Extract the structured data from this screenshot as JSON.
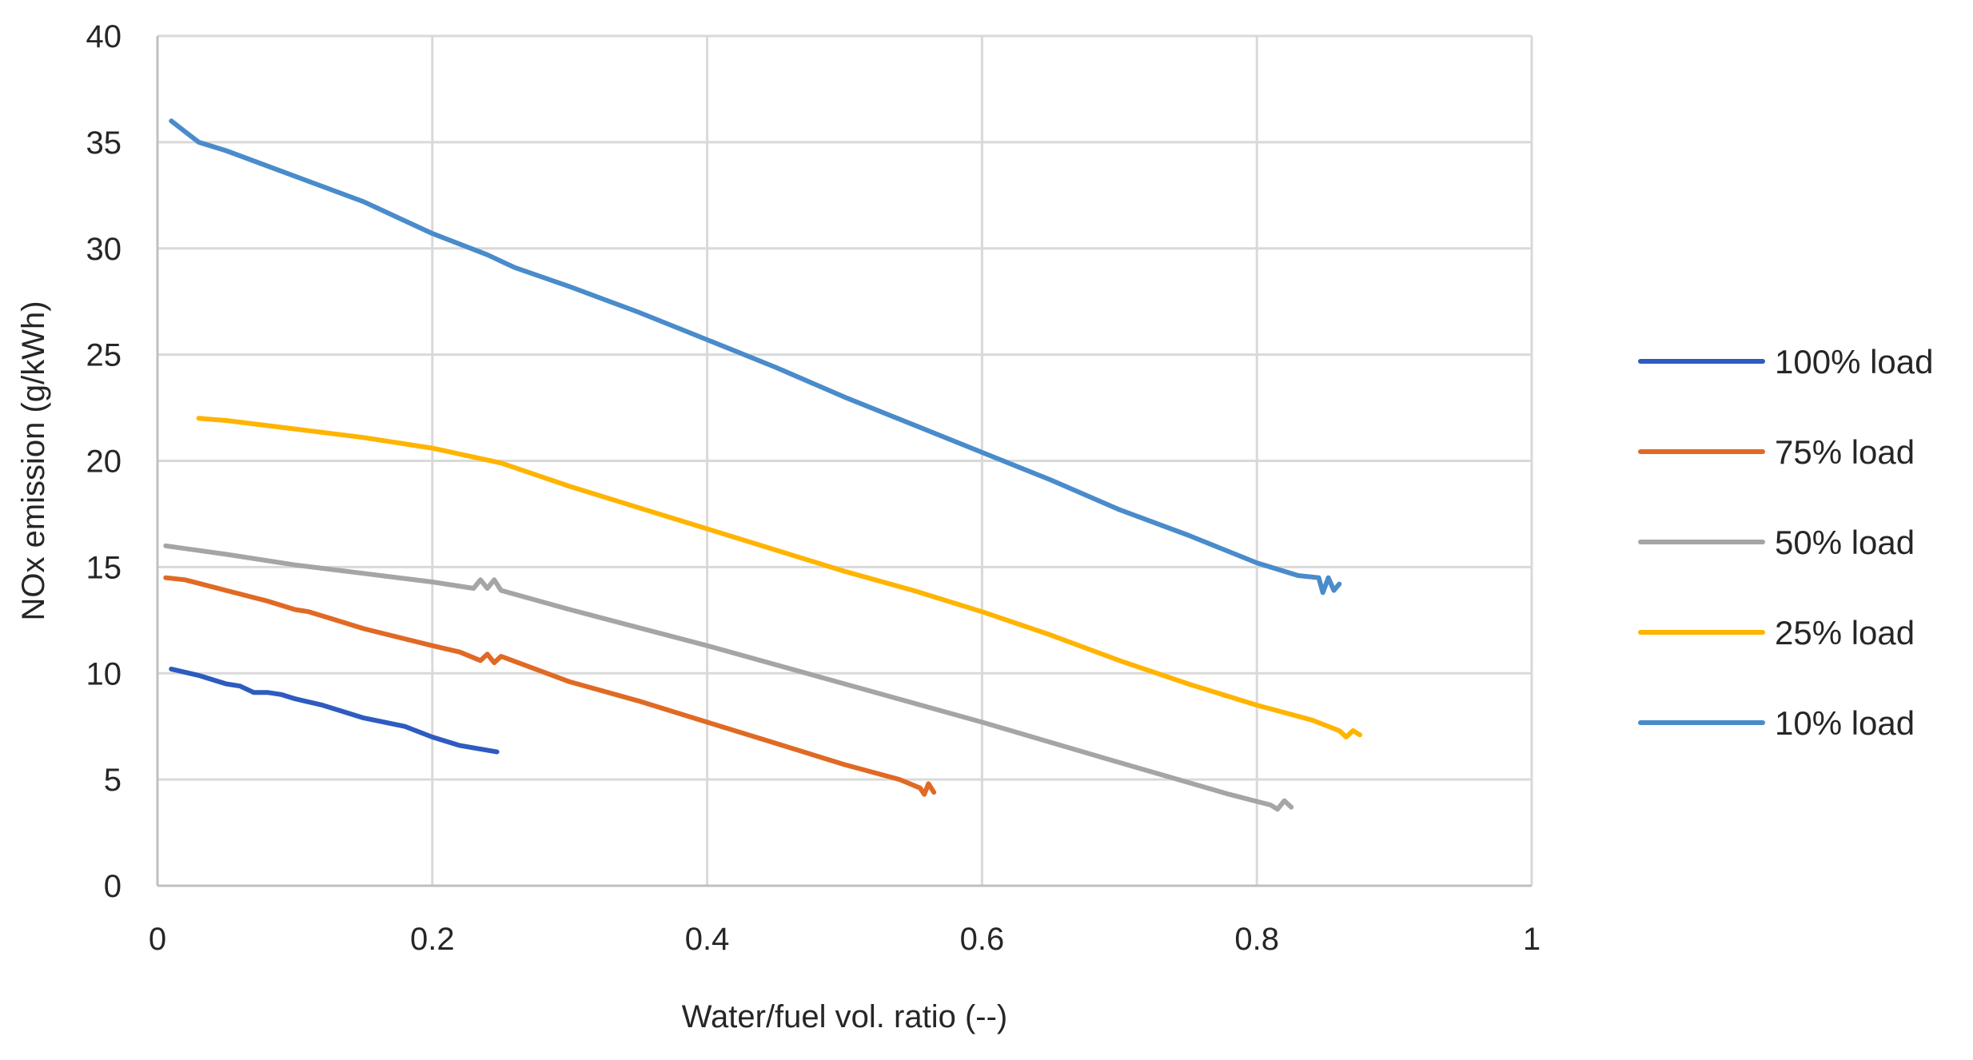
{
  "chart_data": {
    "type": "line",
    "title": "",
    "xlabel": "Water/fuel vol. ratio (--)",
    "ylabel": "NOx emission (g/kWh)",
    "xlim": [
      0,
      1
    ],
    "ylim": [
      0,
      40
    ],
    "x_ticks": [
      0,
      0.2,
      0.4,
      0.6,
      0.8,
      1
    ],
    "x_tick_labels": [
      "0",
      "0.2",
      "0.4",
      "0.6",
      "0.8",
      "1"
    ],
    "y_ticks": [
      0,
      5,
      10,
      15,
      20,
      25,
      30,
      35,
      40
    ],
    "y_tick_labels": [
      "0",
      "5",
      "10",
      "15",
      "20",
      "25",
      "30",
      "35",
      "40"
    ],
    "grid": true,
    "legend_position": "right",
    "series": [
      {
        "name": "100% load",
        "color": "#2E5BBF",
        "x": [
          0.01,
          0.03,
          0.05,
          0.06,
          0.07,
          0.08,
          0.09,
          0.1,
          0.12,
          0.15,
          0.18,
          0.2,
          0.22,
          0.247
        ],
        "y": [
          10.2,
          9.9,
          9.5,
          9.4,
          9.1,
          9.1,
          9.0,
          8.8,
          8.5,
          7.9,
          7.5,
          7.0,
          6.6,
          6.3
        ]
      },
      {
        "name": "75% load",
        "color": "#E06A24",
        "x": [
          0.006,
          0.02,
          0.05,
          0.08,
          0.1,
          0.11,
          0.13,
          0.15,
          0.2,
          0.22,
          0.235,
          0.24,
          0.245,
          0.25,
          0.3,
          0.35,
          0.4,
          0.45,
          0.5,
          0.54,
          0.555,
          0.558,
          0.561,
          0.565
        ],
        "y": [
          14.5,
          14.4,
          13.9,
          13.4,
          13.0,
          12.9,
          12.5,
          12.1,
          11.3,
          11.0,
          10.6,
          10.9,
          10.5,
          10.8,
          9.6,
          8.7,
          7.7,
          6.7,
          5.7,
          5.0,
          4.6,
          4.3,
          4.8,
          4.4
        ]
      },
      {
        "name": "50% load",
        "color": "#A5A5A5",
        "x": [
          0.006,
          0.05,
          0.1,
          0.15,
          0.2,
          0.23,
          0.235,
          0.24,
          0.245,
          0.25,
          0.3,
          0.4,
          0.5,
          0.6,
          0.7,
          0.78,
          0.81,
          0.815,
          0.82,
          0.825
        ],
        "y": [
          16.0,
          15.6,
          15.1,
          14.7,
          14.3,
          14.0,
          14.4,
          14.0,
          14.4,
          13.9,
          13.0,
          11.3,
          9.5,
          7.7,
          5.8,
          4.3,
          3.8,
          3.6,
          4.0,
          3.7
        ]
      },
      {
        "name": "25% load",
        "color": "#FFB400",
        "x": [
          0.03,
          0.05,
          0.1,
          0.15,
          0.2,
          0.25,
          0.3,
          0.35,
          0.4,
          0.45,
          0.5,
          0.55,
          0.6,
          0.65,
          0.7,
          0.75,
          0.8,
          0.84,
          0.86,
          0.865,
          0.87,
          0.875
        ],
        "y": [
          22.0,
          21.9,
          21.5,
          21.1,
          20.6,
          19.9,
          18.8,
          17.8,
          16.8,
          15.8,
          14.8,
          13.9,
          12.9,
          11.8,
          10.6,
          9.5,
          8.5,
          7.8,
          7.3,
          7.0,
          7.3,
          7.1
        ]
      },
      {
        "name": "10% load",
        "color": "#4A8BCB",
        "x": [
          0.01,
          0.02,
          0.03,
          0.05,
          0.1,
          0.15,
          0.2,
          0.24,
          0.26,
          0.3,
          0.35,
          0.4,
          0.45,
          0.5,
          0.55,
          0.6,
          0.65,
          0.7,
          0.75,
          0.8,
          0.83,
          0.845,
          0.848,
          0.852,
          0.856,
          0.86
        ],
        "y": [
          36.0,
          35.5,
          35.0,
          34.6,
          33.4,
          32.2,
          30.7,
          29.7,
          29.1,
          28.2,
          27.0,
          25.7,
          24.4,
          23.0,
          21.7,
          20.4,
          19.1,
          17.7,
          16.5,
          15.2,
          14.6,
          14.5,
          13.8,
          14.5,
          13.9,
          14.2
        ]
      }
    ]
  }
}
